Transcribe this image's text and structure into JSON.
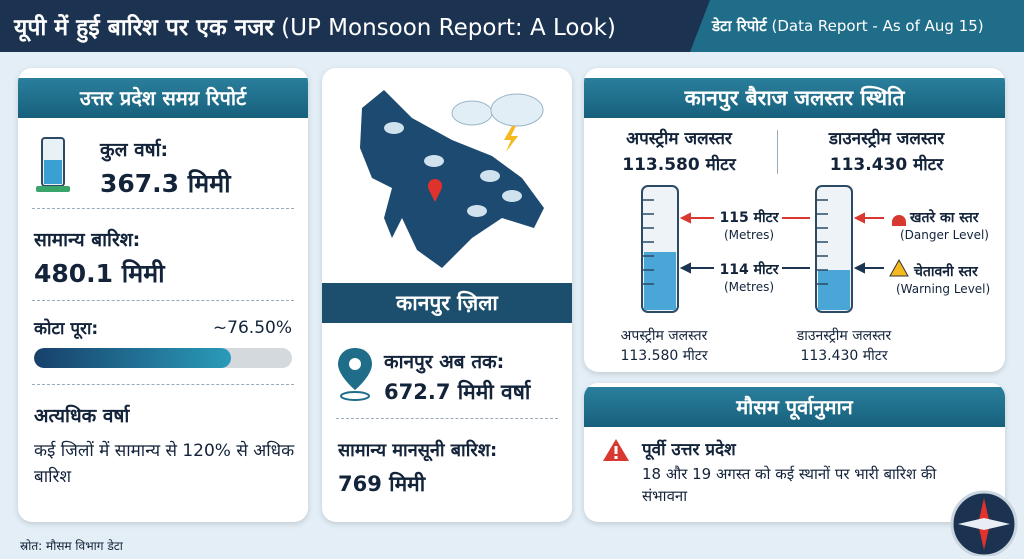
{
  "header": {
    "title": "यूपी में हुई बारिश पर एक नजर",
    "subtitle": "(UP Monsoon Report: A Look)",
    "badge": "डेटा रिपोर्ट",
    "badge_note": "(Data Report - As of Aug 15)"
  },
  "state_report": {
    "title": "उत्तर प्रदेश समग्र रिपोर्ट",
    "total_label": "कुल वर्षा:",
    "total_value": "367.3 मिमी",
    "normal_label": "सामान्य बारिश:",
    "normal_value": "480.1 मिमी",
    "quota_label": "कोटा पूरा:",
    "quota": {
      "value": 76.5,
      "label": "~76.50%"
    },
    "heavy_title": "अत्यधिक वर्षा",
    "heavy_text": "कई जिलों में सामान्य से 120% से अधिक बारिश"
  },
  "district": {
    "title": "कानपुर ज़िला",
    "so_far_label": "कानपुर अब तक:",
    "so_far_value": "672.7 मिमी वर्षा",
    "normal_label": "सामान्य मानसूनी बारिश:",
    "normal_value": "769 मिमी"
  },
  "barrage": {
    "title": "कानपुर बैराज जलस्तर स्थिति",
    "upstream_label": "अपस्ट्रीम जलस्तर",
    "upstream_value": "113.580 मीटर",
    "downstream_label": "डाउनस्ट्रीम जलस्तर",
    "downstream_value": "113.430 मीटर",
    "danger_mark": "115 मीटर",
    "danger_unit": "(Metres)",
    "warning_mark": "114 मीटर",
    "warning_unit": "(Metres)",
    "danger_label": "खतरे का स्तर",
    "danger_note": "(Danger Level)",
    "warning_label": "चेतावनी स्तर",
    "warning_note": "(Warning Level)",
    "upstream_caption": "अपस्ट्रीम जलस्तर",
    "upstream_caption_value": "113.580 मीटर",
    "downstream_caption": "डाउनस्ट्रीम जलस्तर",
    "downstream_caption_value": "113.430 मीटर"
  },
  "forecast": {
    "title": "मौसम पूर्वानुमान",
    "region": "पूर्वी उत्तर प्रदेश",
    "text": "18 और 19 अगस्त को कई स्थानों पर भारी बारिश की संभावना"
  },
  "footer": {
    "source": "स्रोत: मौसम विभाग डेटा"
  }
}
